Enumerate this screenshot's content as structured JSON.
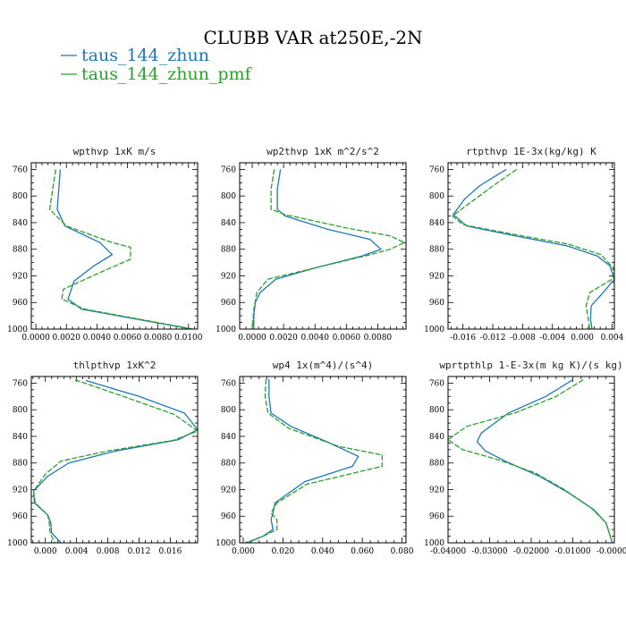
{
  "title": "CLUBB VAR at250E,-2N",
  "legend": [
    {
      "label": "taus_144_zhun",
      "color": "#1f77b4",
      "dash": "solid"
    },
    {
      "label": "taus_144_zhun_pmf",
      "color": "#2ca02c",
      "dash": "dashed"
    }
  ],
  "chart_data": [
    {
      "type": "line",
      "title": "wpthvp  1xK m/s",
      "xlim": [
        -0.0003,
        0.0106
      ],
      "ylim": [
        1000,
        750
      ],
      "grid": false,
      "xticks": [
        0.0,
        0.002,
        0.004,
        0.006,
        0.008,
        0.01
      ],
      "xticklabels": [
        "0.0000",
        "0.0020",
        "0.0040",
        "0.0060",
        "0.0080",
        "0.0100"
      ],
      "yticks": [
        760,
        800,
        840,
        880,
        920,
        960,
        1000
      ],
      "series": [
        {
          "name": "taus_144_zhun",
          "x": [
            0.0016,
            0.0015,
            0.0014,
            0.0019,
            0.0042,
            0.005,
            0.0038,
            0.0025,
            0.0021,
            0.003,
            0.0102
          ],
          "y": [
            760,
            790,
            820,
            845,
            870,
            888,
            905,
            928,
            955,
            970,
            1000
          ]
        },
        {
          "name": "taus_144_zhun_pmf",
          "x": [
            0.0013,
            0.0011,
            0.0009,
            0.002,
            0.005,
            0.0062,
            0.0062,
            0.0042,
            0.0018,
            0.0017,
            0.0032,
            0.0103
          ],
          "y": [
            760,
            790,
            820,
            845,
            870,
            877,
            895,
            915,
            940,
            955,
            970,
            1000
          ]
        }
      ]
    },
    {
      "type": "line",
      "title": "wp2thvp  1xK m^2/s^2",
      "xlim": [
        -0.0008,
        0.0098
      ],
      "ylim": [
        1000,
        750
      ],
      "grid": false,
      "xticks": [
        0.0,
        0.002,
        0.004,
        0.006,
        0.008
      ],
      "xticklabels": [
        "0.0000",
        "0.0020",
        "0.0040",
        "0.0060",
        "0.0080"
      ],
      "yticks": [
        760,
        800,
        840,
        880,
        920,
        960,
        1000
      ],
      "series": [
        {
          "name": "taus_144_zhun",
          "x": [
            0.0018,
            0.0016,
            0.0016,
            0.0021,
            0.0048,
            0.0075,
            0.0082,
            0.007,
            0.004,
            0.0015,
            0.0005,
            0.0002,
            0.0001,
            0.0001
          ],
          "y": [
            760,
            790,
            820,
            830,
            850,
            865,
            880,
            890,
            908,
            925,
            945,
            960,
            980,
            1000
          ]
        },
        {
          "name": "taus_144_zhun_pmf",
          "x": [
            0.0014,
            0.0012,
            0.0012,
            0.0021,
            0.006,
            0.0088,
            0.0097,
            0.0088,
            0.0072,
            0.004,
            0.001,
            0.0003,
            0.0001,
            0.0
          ],
          "y": [
            760,
            790,
            820,
            828,
            848,
            860,
            870,
            880,
            890,
            908,
            925,
            945,
            970,
            1000
          ]
        }
      ]
    },
    {
      "type": "line",
      "title": "rtpthvp  1E-3x(kg/kg) K",
      "xlim": [
        -0.018,
        0.0043
      ],
      "ylim": [
        1000,
        750
      ],
      "grid": false,
      "xticks": [
        -0.016,
        -0.012,
        -0.008,
        -0.004,
        0.0,
        0.004
      ],
      "xticklabels": [
        "-0.016",
        "-0.012",
        "-0.008",
        "-0.004",
        "0.000",
        "0.004"
      ],
      "yticks": [
        760,
        800,
        840,
        880,
        920,
        960,
        1000
      ],
      "series": [
        {
          "name": "taus_144_zhun",
          "x": [
            -0.0102,
            -0.0138,
            -0.0158,
            -0.0173,
            -0.0155,
            -0.009,
            -0.002,
            0.002,
            0.0037,
            0.0043,
            0.0028,
            0.0012,
            0.0011,
            0.0013
          ],
          "y": [
            760,
            785,
            805,
            828,
            845,
            860,
            875,
            890,
            905,
            925,
            945,
            965,
            985,
            1000
          ]
        },
        {
          "name": "taus_144_zhun_pmf",
          "x": [
            -0.0088,
            -0.012,
            -0.0148,
            -0.0174,
            -0.016,
            -0.009,
            -0.002,
            0.0025,
            0.0043,
            0.004,
            0.001,
            0.0005,
            0.0008,
            0.001
          ],
          "y": [
            760,
            785,
            808,
            830,
            843,
            858,
            872,
            888,
            910,
            925,
            945,
            965,
            985,
            1000
          ]
        }
      ]
    },
    {
      "type": "line",
      "title": "thlpthvp  1xK^2",
      "xlim": [
        -0.0018,
        0.0195
      ],
      "ylim": [
        1000,
        750
      ],
      "grid": false,
      "xticks": [
        0.0,
        0.004,
        0.008,
        0.012,
        0.016
      ],
      "xticklabels": [
        "0.000",
        "0.004",
        "0.008",
        "0.012",
        "0.016"
      ],
      "yticks": [
        760,
        800,
        840,
        880,
        920,
        960,
        1000
      ],
      "series": [
        {
          "name": "taus_144_zhun",
          "x": [
            0.0052,
            0.012,
            0.0178,
            0.0195,
            0.017,
            0.009,
            0.003,
            0.0003,
            -0.0015,
            -0.0014,
            0.0003,
            0.0007,
            0.0008,
            0.002
          ],
          "y": [
            756,
            780,
            805,
            830,
            845,
            862,
            880,
            900,
            922,
            940,
            958,
            970,
            985,
            1000
          ]
        },
        {
          "name": "taus_144_zhun_pmf",
          "x": [
            0.0038,
            0.01,
            0.0165,
            0.0195,
            0.0164,
            0.008,
            0.002,
            0.0,
            -0.0015,
            -0.0013,
            0.0003,
            0.0005,
            0.0006,
            0.0012
          ],
          "y": [
            755,
            780,
            807,
            832,
            846,
            862,
            877,
            897,
            922,
            940,
            958,
            970,
            985,
            1000
          ]
        }
      ]
    },
    {
      "type": "line",
      "title": "wp4  1x(m^4)/(s^4)",
      "xlim": [
        -0.0018,
        0.082
      ],
      "ylim": [
        1000,
        750
      ],
      "grid": false,
      "xticks": [
        0.0,
        0.02,
        0.04,
        0.06,
        0.08
      ],
      "xticklabels": [
        "0.000",
        "0.020",
        "0.040",
        "0.060",
        "0.080"
      ],
      "yticks": [
        760,
        800,
        840,
        880,
        920,
        960,
        1000
      ],
      "series": [
        {
          "name": "taus_144_zhun",
          "x": [
            0.013,
            0.013,
            0.014,
            0.024,
            0.042,
            0.058,
            0.055,
            0.031,
            0.016,
            0.015,
            0.014,
            0.015,
            0.01,
            0.002
          ],
          "y": [
            754,
            780,
            805,
            825,
            848,
            870,
            885,
            908,
            940,
            955,
            965,
            980,
            990,
            1000
          ]
        },
        {
          "name": "taus_144_zhun_pmf",
          "x": [
            0.0115,
            0.011,
            0.0125,
            0.023,
            0.048,
            0.07,
            0.07,
            0.032,
            0.017,
            0.014,
            0.017,
            0.017,
            0.01,
            0.001
          ],
          "y": [
            754,
            780,
            805,
            828,
            855,
            868,
            885,
            912,
            940,
            955,
            965,
            980,
            990,
            1000
          ]
        }
      ]
    },
    {
      "type": "line",
      "title": "wprtpthlp  1-E-3x(m kg K)/(s kg)",
      "xlim": [
        -0.04,
        0.0
      ],
      "ylim": [
        1000,
        750
      ],
      "grid": false,
      "xticks": [
        -0.04,
        -0.03,
        -0.02,
        -0.01,
        0.0
      ],
      "xticklabels": [
        "-0.04000",
        "-0.03000",
        "-0.02000",
        "-0.01000",
        "-0.00000"
      ],
      "yticks": [
        760,
        800,
        840,
        880,
        920,
        960,
        1000
      ],
      "series": [
        {
          "name": "taus_144_zhun",
          "x": [
            -0.01,
            -0.0165,
            -0.0255,
            -0.032,
            -0.033,
            -0.031,
            -0.026,
            -0.018,
            -0.011,
            -0.005,
            -0.002,
            -0.0005
          ],
          "y": [
            755,
            780,
            805,
            835,
            848,
            862,
            878,
            900,
            925,
            950,
            970,
            1000
          ]
        },
        {
          "name": "taus_144_zhun_pmf",
          "x": [
            -0.0075,
            -0.014,
            -0.024,
            -0.0355,
            -0.04,
            -0.0365,
            -0.028,
            -0.019,
            -0.012,
            -0.0055,
            -0.002,
            -0.0005
          ],
          "y": [
            755,
            780,
            805,
            825,
            845,
            860,
            875,
            895,
            920,
            948,
            970,
            1000
          ]
        }
      ]
    }
  ]
}
